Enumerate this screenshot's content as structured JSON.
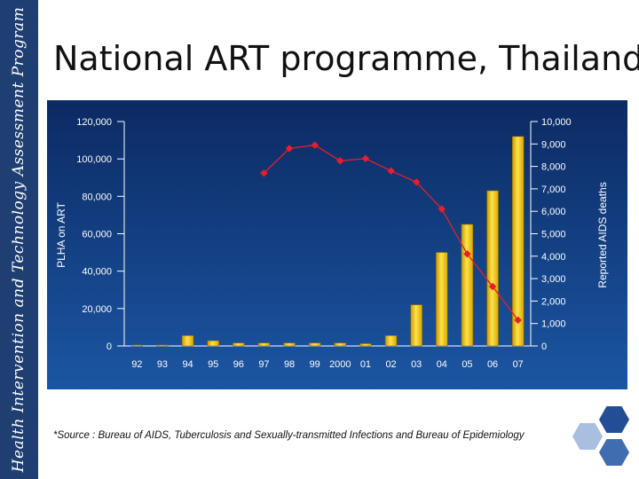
{
  "sidebar": {
    "text": "Health Intervention and Technology Assessment Program"
  },
  "title": "National ART programme, Thailand",
  "source": "*Source : Bureau of AIDS, Tuberculosis and Sexually-transmitted Infections and Bureau of Epidemiology",
  "colors": {
    "sidebar": "#1f3f73",
    "plot_bg_top": "#0c2a63",
    "plot_bg_bottom": "#1b56a3",
    "bar": "#f5c400",
    "line": "#e51f2b",
    "hex_dark": "#234d94",
    "hex_mid": "#3f6db0",
    "hex_light": "#a9bfe0"
  },
  "chart_data": {
    "type": "bar+line",
    "categories": [
      "92",
      "93",
      "94",
      "95",
      "96",
      "97",
      "98",
      "99",
      "2000",
      "01",
      "02",
      "03",
      "04",
      "05",
      "06",
      "07"
    ],
    "ylabel": "PLHA on ART",
    "y2label": "Reported AIDS deaths",
    "ylim": [
      0,
      120000
    ],
    "y2lim": [
      0,
      10000
    ],
    "yticks": [
      "0",
      "20,000",
      "40,000",
      "60,000",
      "80,000",
      "100,000",
      "120,000"
    ],
    "y2ticks": [
      "0",
      "1,000",
      "2,000",
      "3,000",
      "4,000",
      "5,000",
      "6,000",
      "7,000",
      "8,000",
      "9,000",
      "10,000"
    ],
    "bars": [
      500,
      500,
      5500,
      2800,
      1600,
      1600,
      1600,
      1600,
      1600,
      1200,
      5500,
      22000,
      50000,
      65000,
      83000,
      112000
    ],
    "line": [
      null,
      null,
      null,
      null,
      null,
      7700,
      8800,
      8950,
      8250,
      8350,
      7800,
      7300,
      6100,
      4100,
      2650,
      1150
    ],
    "grid": false
  }
}
